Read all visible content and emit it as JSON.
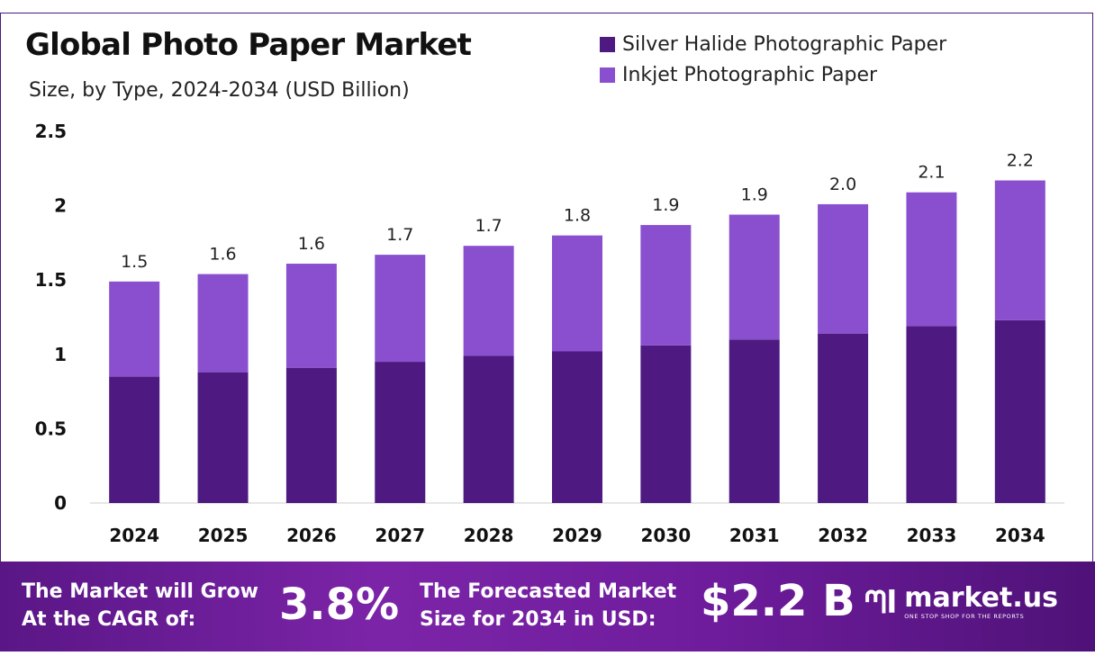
{
  "title": "Global Photo Paper Market",
  "subtitle": "Size, by Type, 2024-2034 (USD Billion)",
  "legend": [
    {
      "label": "Silver Halide Photographic Paper",
      "color": "#4e1a82"
    },
    {
      "label": "Inkjet Photographic Paper",
      "color": "#8a4fcf"
    }
  ],
  "chart_data": {
    "type": "bar",
    "stacked": true,
    "categories": [
      "2024",
      "2025",
      "2026",
      "2027",
      "2028",
      "2029",
      "2030",
      "2031",
      "2032",
      "2033",
      "2034"
    ],
    "series": [
      {
        "name": "Silver Halide Photographic Paper",
        "color": "#4e1a82",
        "values": [
          0.85,
          0.88,
          0.91,
          0.95,
          0.99,
          1.02,
          1.06,
          1.1,
          1.14,
          1.19,
          1.23
        ]
      },
      {
        "name": "Inkjet Photographic Paper",
        "color": "#8a4fcf",
        "values": [
          0.64,
          0.66,
          0.7,
          0.72,
          0.74,
          0.78,
          0.81,
          0.84,
          0.87,
          0.9,
          0.94
        ]
      }
    ],
    "totals": [
      "1.5",
      "1.6",
      "1.6",
      "1.7",
      "1.7",
      "1.8",
      "1.9",
      "1.9",
      "2.0",
      "2.1",
      "2.2"
    ],
    "y_ticks": [
      "0",
      "0.5",
      "1",
      "1.5",
      "2",
      "2.5"
    ],
    "ylim": [
      0,
      2.5
    ],
    "grid": false,
    "legend_position": "top-right"
  },
  "footer": {
    "cagr_label_line1": "The Market will Grow",
    "cagr_label_line2": "At the CAGR of:",
    "cagr_value": "3.8%",
    "forecast_label_line1": "The Forecasted Market",
    "forecast_label_line2": "Size for 2034 in USD:",
    "forecast_value": "$2.2 B",
    "brand_name": "market.us",
    "brand_tagline": "ONE STOP SHOP FOR THE REPORTS"
  }
}
